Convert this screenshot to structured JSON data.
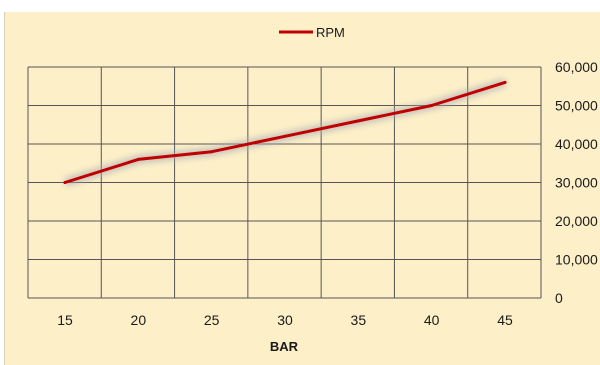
{
  "chart_data": {
    "type": "line",
    "title": "",
    "xlabel": "BAR",
    "ylabel": "",
    "x": [
      15,
      20,
      25,
      30,
      35,
      40,
      45
    ],
    "series": [
      {
        "name": "RPM",
        "values": [
          30000,
          36000,
          38000,
          42000,
          46000,
          50000,
          56000
        ]
      }
    ],
    "xticks": [
      "15",
      "20",
      "25",
      "30",
      "35",
      "40",
      "45"
    ],
    "yticks": [
      "0",
      "10,000",
      "20,000",
      "30,000",
      "40,000",
      "50,000",
      "60,000"
    ],
    "ylim": [
      0,
      60000
    ],
    "y_axis_position": "right",
    "grid": true,
    "legend_position": "top-center",
    "colors": {
      "series": "#c00000",
      "background": "#fdf0c8",
      "grid": "#555555"
    }
  }
}
